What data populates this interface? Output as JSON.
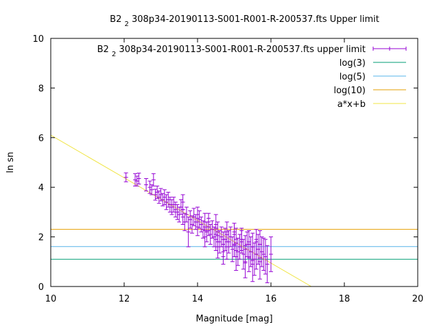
{
  "chart_data": {
    "type": "scatter",
    "title": "B2 2 308p34-20190113-S001-R001-R-200537.fts Upper limit",
    "title_parts": [
      "B2 ",
      "2",
      " 308p34-20190113-S001-R001-R-200537.fts Upper limit"
    ],
    "xlabel": "Magnitude [mag]",
    "ylabel": "ln sn",
    "xlim": [
      10,
      20
    ],
    "ylim": [
      0,
      10
    ],
    "x_ticks": [
      "10",
      "12",
      "14",
      "16",
      "18",
      "20"
    ],
    "y_ticks": [
      "0",
      "2",
      "4",
      "6",
      "8",
      "10"
    ],
    "grid": false,
    "legend_position": "top-right",
    "colors": {
      "points": "#9400d3",
      "log3": "#009e73",
      "log5": "#56b4e9",
      "log10": "#e69f00",
      "fit": "#f0e442"
    },
    "legend": [
      {
        "key": "points",
        "label_parts": [
          "B2 ",
          "2",
          " 308p34-20190113-S001-R001-R-200537.fts upper limit"
        ],
        "style": "errorbar"
      },
      {
        "key": "log3",
        "label": "log(3)",
        "style": "line"
      },
      {
        "key": "log5",
        "label": "log(5)",
        "style": "line"
      },
      {
        "key": "log10",
        "label": "log(10)",
        "style": "line"
      },
      {
        "key": "fit",
        "label": "a*x+b",
        "style": "line"
      }
    ],
    "hlines": [
      {
        "key": "log3",
        "y": 1.0986
      },
      {
        "key": "log5",
        "y": 1.6094
      },
      {
        "key": "log10",
        "y": 2.3026
      }
    ],
    "fit_line": {
      "x": [
        10.0,
        17.1
      ],
      "y": [
        6.1,
        0.0
      ]
    },
    "points": [
      {
        "x": 12.05,
        "y": 4.4,
        "e": 0.18
      },
      {
        "x": 12.3,
        "y": 4.3,
        "e": 0.25
      },
      {
        "x": 12.35,
        "y": 4.25,
        "e": 0.2
      },
      {
        "x": 12.4,
        "y": 4.35,
        "e": 0.22
      },
      {
        "x": 12.6,
        "y": 4.1,
        "e": 0.25
      },
      {
        "x": 12.7,
        "y": 4.0,
        "e": 0.25
      },
      {
        "x": 12.75,
        "y": 3.9,
        "e": 0.2
      },
      {
        "x": 12.8,
        "y": 4.3,
        "e": 0.25
      },
      {
        "x": 12.85,
        "y": 3.7,
        "e": 0.22
      },
      {
        "x": 12.9,
        "y": 3.8,
        "e": 0.25
      },
      {
        "x": 12.95,
        "y": 3.6,
        "e": 0.25
      },
      {
        "x": 13.0,
        "y": 3.7,
        "e": 0.25
      },
      {
        "x": 13.05,
        "y": 3.5,
        "e": 0.25
      },
      {
        "x": 13.1,
        "y": 3.6,
        "e": 0.3
      },
      {
        "x": 13.15,
        "y": 3.4,
        "e": 0.3
      },
      {
        "x": 13.2,
        "y": 3.5,
        "e": 0.3
      },
      {
        "x": 13.3,
        "y": 3.2,
        "e": 0.3
      },
      {
        "x": 13.35,
        "y": 3.3,
        "e": 0.3
      },
      {
        "x": 13.4,
        "y": 3.1,
        "e": 0.3
      },
      {
        "x": 13.45,
        "y": 3.0,
        "e": 0.3
      },
      {
        "x": 13.5,
        "y": 2.9,
        "e": 0.3
      },
      {
        "x": 13.55,
        "y": 3.2,
        "e": 0.3
      },
      {
        "x": 13.6,
        "y": 2.8,
        "e": 0.3
      },
      {
        "x": 13.65,
        "y": 2.6,
        "e": 0.35
      },
      {
        "x": 13.7,
        "y": 2.9,
        "e": 0.3
      },
      {
        "x": 13.75,
        "y": 2.2,
        "e": 0.6
      },
      {
        "x": 13.8,
        "y": 2.7,
        "e": 0.35
      },
      {
        "x": 13.85,
        "y": 2.5,
        "e": 0.35
      },
      {
        "x": 13.9,
        "y": 2.8,
        "e": 0.35
      },
      {
        "x": 13.95,
        "y": 2.6,
        "e": 0.3
      },
      {
        "x": 14.0,
        "y": 2.4,
        "e": 0.35
      },
      {
        "x": 14.05,
        "y": 2.7,
        "e": 0.35
      },
      {
        "x": 14.1,
        "y": 2.5,
        "e": 0.3
      },
      {
        "x": 14.15,
        "y": 2.3,
        "e": 0.35
      },
      {
        "x": 14.2,
        "y": 2.6,
        "e": 0.35
      },
      {
        "x": 14.25,
        "y": 2.2,
        "e": 0.4
      },
      {
        "x": 14.3,
        "y": 2.4,
        "e": 0.35
      },
      {
        "x": 14.35,
        "y": 2.1,
        "e": 0.4
      },
      {
        "x": 14.4,
        "y": 2.3,
        "e": 0.35
      },
      {
        "x": 14.45,
        "y": 2.0,
        "e": 0.4
      },
      {
        "x": 14.5,
        "y": 1.9,
        "e": 0.45
      },
      {
        "x": 14.55,
        "y": 2.2,
        "e": 0.4
      },
      {
        "x": 14.6,
        "y": 1.8,
        "e": 0.45
      },
      {
        "x": 14.65,
        "y": 2.0,
        "e": 0.4
      },
      {
        "x": 14.7,
        "y": 1.7,
        "e": 0.5
      },
      {
        "x": 14.75,
        "y": 1.9,
        "e": 0.45
      },
      {
        "x": 14.8,
        "y": 1.6,
        "e": 0.5
      },
      {
        "x": 14.85,
        "y": 1.8,
        "e": 0.45
      },
      {
        "x": 14.9,
        "y": 2.0,
        "e": 0.4
      },
      {
        "x": 14.95,
        "y": 1.5,
        "e": 0.5
      },
      {
        "x": 15.0,
        "y": 1.7,
        "e": 0.5
      },
      {
        "x": 15.05,
        "y": 1.9,
        "e": 0.45
      },
      {
        "x": 15.1,
        "y": 1.4,
        "e": 0.55
      },
      {
        "x": 15.15,
        "y": 1.6,
        "e": 0.5
      },
      {
        "x": 15.2,
        "y": 1.8,
        "e": 0.45
      },
      {
        "x": 15.25,
        "y": 1.3,
        "e": 0.6
      },
      {
        "x": 15.3,
        "y": 1.5,
        "e": 0.55
      },
      {
        "x": 15.35,
        "y": 1.7,
        "e": 0.5
      },
      {
        "x": 15.4,
        "y": 1.2,
        "e": 0.6
      },
      {
        "x": 15.45,
        "y": 1.4,
        "e": 0.6
      },
      {
        "x": 15.5,
        "y": 1.6,
        "e": 0.55
      },
      {
        "x": 15.55,
        "y": 1.1,
        "e": 0.65
      },
      {
        "x": 15.6,
        "y": 1.3,
        "e": 0.6
      },
      {
        "x": 15.65,
        "y": 1.5,
        "e": 0.6
      },
      {
        "x": 15.7,
        "y": 1.0,
        "e": 0.7
      },
      {
        "x": 15.75,
        "y": 1.4,
        "e": 0.6
      },
      {
        "x": 15.8,
        "y": 1.3,
        "e": 0.65
      },
      {
        "x": 15.85,
        "y": 1.2,
        "e": 0.7
      },
      {
        "x": 16.0,
        "y": 1.3,
        "e": 0.7
      },
      {
        "x": 14.0,
        "y": 2.9,
        "e": 0.3
      },
      {
        "x": 14.3,
        "y": 2.6,
        "e": 0.35
      },
      {
        "x": 14.5,
        "y": 2.5,
        "e": 0.4
      },
      {
        "x": 14.8,
        "y": 2.2,
        "e": 0.4
      },
      {
        "x": 15.0,
        "y": 2.1,
        "e": 0.45
      },
      {
        "x": 15.2,
        "y": 1.9,
        "e": 0.45
      },
      {
        "x": 15.4,
        "y": 1.7,
        "e": 0.55
      },
      {
        "x": 15.6,
        "y": 1.8,
        "e": 0.5
      },
      {
        "x": 15.5,
        "y": 0.9,
        "e": 0.7
      },
      {
        "x": 15.3,
        "y": 1.0,
        "e": 0.65
      },
      {
        "x": 14.7,
        "y": 1.4,
        "e": 0.5
      },
      {
        "x": 14.2,
        "y": 2.0,
        "e": 0.4
      },
      {
        "x": 13.6,
        "y": 3.4,
        "e": 0.3
      },
      {
        "x": 13.25,
        "y": 3.3,
        "e": 0.3
      },
      {
        "x": 15.9,
        "y": 0.9,
        "e": 0.75
      },
      {
        "x": 15.7,
        "y": 1.7,
        "e": 0.55
      },
      {
        "x": 15.05,
        "y": 1.2,
        "e": 0.55
      },
      {
        "x": 14.55,
        "y": 1.6,
        "e": 0.45
      }
    ]
  }
}
